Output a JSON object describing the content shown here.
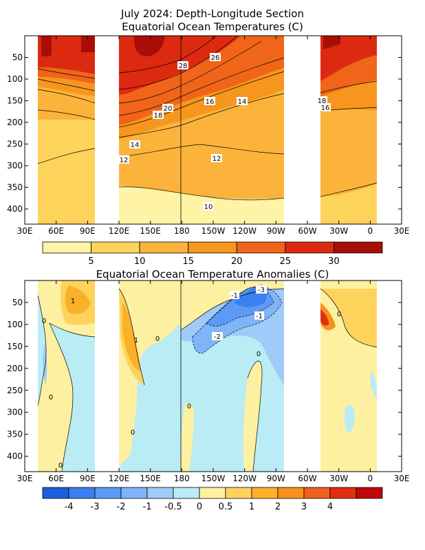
{
  "chart_data": [
    {
      "type": "heatmap",
      "title_line1": "July 2024: Depth-Longitude Section",
      "title_line2": "Equatorial Ocean Temperatures (C)",
      "x_tick_labels": [
        "30E",
        "60E",
        "90E",
        "120E",
        "150E",
        "180",
        "150W",
        "120W",
        "90W",
        "60W",
        "30W",
        "0",
        "30E"
      ],
      "y_tick_labels": [
        "50",
        "100",
        "150",
        "200",
        "250",
        "300",
        "350",
        "400"
      ],
      "y_values": [
        50,
        100,
        150,
        200,
        250,
        300,
        350,
        400
      ],
      "ylim": [
        435,
        0
      ],
      "colorbar_levels": [
        0,
        5,
        10,
        15,
        20,
        25,
        30,
        35
      ],
      "colorbar_labels": [
        "5",
        "10",
        "15",
        "20",
        "25",
        "30"
      ],
      "colorbar_colors": [
        "#fff3a6",
        "#fdd35c",
        "#fbb33b",
        "#f7961e",
        "#f0651a",
        "#dc2a10",
        "#a80e06"
      ],
      "contour_labels": [
        "26",
        "28",
        "20",
        "18",
        "16",
        "14",
        "18",
        "16",
        "14",
        "12",
        "12",
        "10"
      ]
    },
    {
      "type": "heatmap",
      "title": "Equatorial Ocean Temperature Anomalies (C)",
      "x_tick_labels": [
        "30E",
        "60E",
        "90E",
        "120E",
        "150E",
        "180",
        "150W",
        "120W",
        "90W",
        "60W",
        "30W",
        "0",
        "30E"
      ],
      "y_tick_labels": [
        "50",
        "100",
        "150",
        "200",
        "250",
        "300",
        "350",
        "400"
      ],
      "y_values": [
        50,
        100,
        150,
        200,
        250,
        300,
        350,
        400
      ],
      "ylim": [
        435,
        0
      ],
      "colorbar_levels": [
        -5,
        -4,
        -3,
        -2,
        -1,
        -0.5,
        0,
        0.5,
        1,
        2,
        3,
        4,
        5
      ],
      "colorbar_labels": [
        "-4",
        "-3",
        "-2",
        "-1",
        "-0.5",
        "0",
        "0.5",
        "1",
        "2",
        "3",
        "4"
      ],
      "colorbar_colors": [
        "#1a5fe0",
        "#3a80f0",
        "#5c9af5",
        "#7fb4f8",
        "#9fcbf8",
        "#b9ecf5",
        "#fdf0a0",
        "#fdd35c",
        "#fbb02a",
        "#f7901c",
        "#f0601a",
        "#e03010",
        "#c00808"
      ],
      "contour_labels": [
        "-1",
        "-3",
        "-1",
        "-2",
        "0",
        "1",
        "0",
        "1",
        "0",
        "0",
        "0",
        "0",
        "0",
        "0"
      ]
    }
  ]
}
